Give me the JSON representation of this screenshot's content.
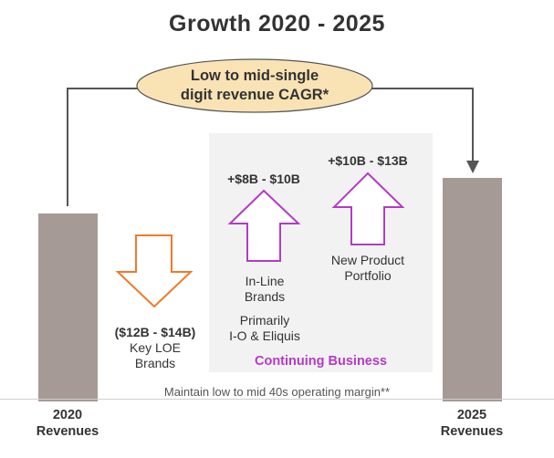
{
  "title": "Growth 2020 - 2025",
  "cagr": {
    "line1": "Low to mid-single",
    "line2": "digit revenue CAGR*"
  },
  "bars": {
    "left": {
      "line1": "2020",
      "line2": "Revenues"
    },
    "right": {
      "line1": "2025",
      "line2": "Revenues"
    }
  },
  "loe": {
    "range": "($12B - $14B)",
    "line1": "Key LOE",
    "line2": "Brands"
  },
  "inline": {
    "range": "+$8B - $10B",
    "line1": "In-Line",
    "line2": "Brands",
    "line3": "Primarily",
    "line4": "I-O & Eliquis"
  },
  "newprod": {
    "range": "+$10B - $13B",
    "line1": "New Product",
    "line2": "Portfolio"
  },
  "continuing_label": "Continuing Business",
  "footnote": "Maintain low to mid 40s operating margin**",
  "colors": {
    "bar": "#a59a96",
    "down_arrow": "#f07a2a",
    "up_arrow": "#b33bc4",
    "ellipse_fill": "#f9e3b5",
    "ellipse_stroke": "#555555",
    "connector": "#555555",
    "continuing_bg": "#f2f2f2"
  },
  "icons": [
    "down-arrow-icon",
    "up-arrow-icon",
    "connector-arrow-icon"
  ]
}
